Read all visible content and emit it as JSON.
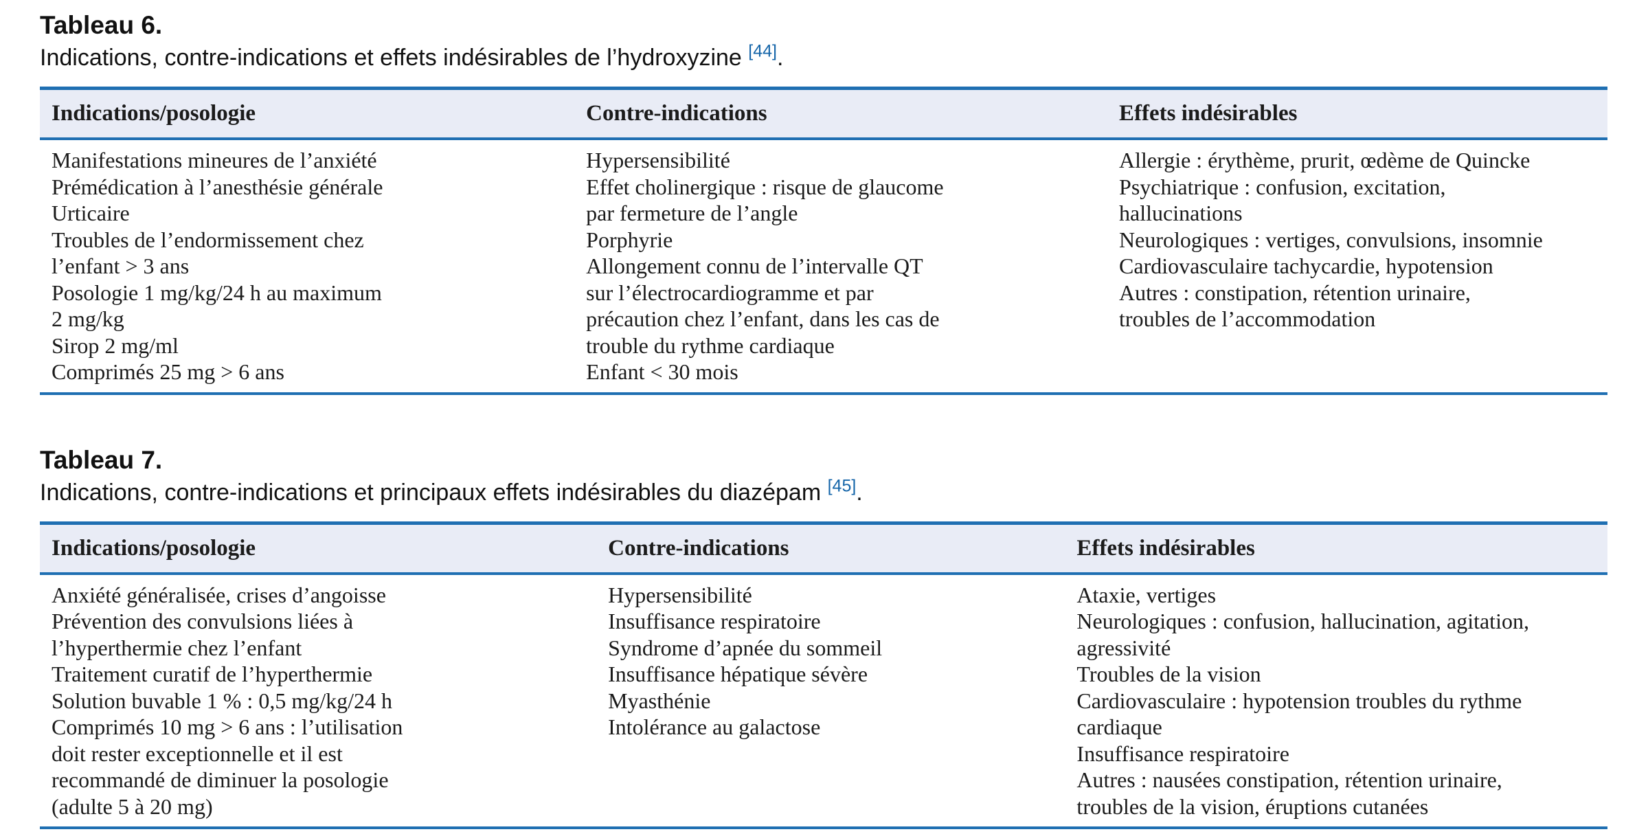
{
  "colors": {
    "table_border_blue": "#1f6fb2",
    "header_band_background": "#e9ecf6",
    "citation_blue": "#1565a9",
    "text": "#1b1b1b"
  },
  "tables": [
    {
      "title": "Tableau 6.",
      "caption": "Indications, contre-indications et effets indésirables de l’hydroxyzine",
      "reference": "[44]",
      "caption_end": ".",
      "columns": [
        "Indications/posologie",
        "Contre-indications",
        "Effets indésirables"
      ],
      "cells": [
        [
          "Manifestations mineures de l’anxiété",
          "Prémédication à l’anesthésie générale",
          "Urticaire",
          "Troubles de l’endormissement chez",
          "l’enfant > 3 ans",
          "Posologie 1 mg/kg/24 h au maximum",
          "2 mg/kg",
          "Sirop 2 mg/ml",
          "Comprimés 25 mg > 6 ans"
        ],
        [
          "Hypersensibilité",
          "Effet cholinergique : risque de glaucome",
          "par fermeture de l’angle",
          "Porphyrie",
          "Allongement connu de l’intervalle QT",
          "sur l’électrocardiogramme et par",
          "précaution chez l’enfant, dans les cas de",
          "trouble du rythme cardiaque",
          "Enfant < 30 mois"
        ],
        [
          "Allergie : érythème, prurit, œdème de Quincke",
          "Psychiatrique : confusion, excitation,",
          "hallucinations",
          "Neurologiques : vertiges, convulsions, insomnie",
          "Cardiovasculaire tachycardie, hypotension",
          "Autres : constipation, rétention urinaire,",
          "troubles de l’accommodation"
        ]
      ]
    },
    {
      "title": "Tableau 7.",
      "caption": "Indications, contre-indications et principaux effets indésirables du diazépam",
      "reference": "[45]",
      "caption_end": ".",
      "columns": [
        "Indications/posologie",
        "Contre-indications",
        "Effets indésirables"
      ],
      "cells": [
        [
          "Anxiété généralisée, crises d’angoisse",
          "Prévention des convulsions liées à",
          "l’hyperthermie chez l’enfant",
          "Traitement curatif de l’hyperthermie",
          "Solution buvable 1 % : 0,5 mg/kg/24 h",
          "Comprimés 10 mg > 6 ans : l’utilisation",
          "doit rester exceptionnelle et il est",
          "recommandé de diminuer la posologie",
          "(adulte 5 à 20 mg)"
        ],
        [
          "Hypersensibilité",
          "Insuffisance respiratoire",
          "Syndrome d’apnée du sommeil",
          "Insuffisance hépatique sévère",
          "Myasthénie",
          "Intolérance au galactose"
        ],
        [
          "Ataxie, vertiges",
          "Neurologiques : confusion, hallucination, agitation,",
          "agressivité",
          "Troubles de la vision",
          "Cardiovasculaire : hypotension troubles du rythme",
          "cardiaque",
          "Insuffisance respiratoire",
          "Autres : nausées constipation, rétention urinaire,",
          "troubles de la vision, éruptions cutanées"
        ]
      ]
    }
  ]
}
